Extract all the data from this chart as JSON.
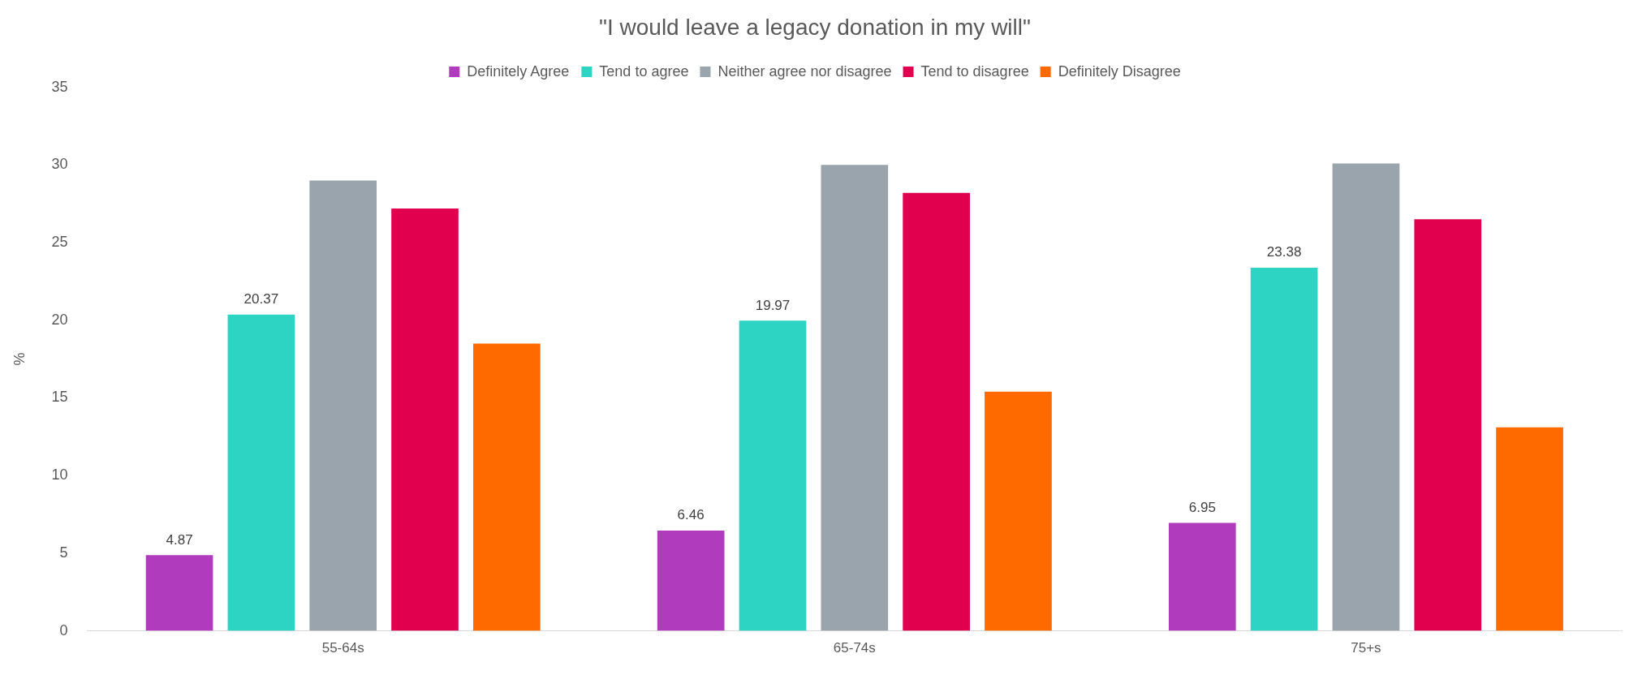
{
  "chart_data": {
    "type": "bar",
    "title": "\"I would leave a legacy donation in my will\"",
    "ylabel": "%",
    "categories": [
      "55-64s",
      "65-74s",
      "75+s"
    ],
    "series": [
      {
        "name": "Definitely Agree",
        "color": "#b03bbd",
        "values": [
          4.87,
          6.46,
          6.95
        ],
        "value_labels": [
          "4.87",
          "6.46",
          "6.95"
        ]
      },
      {
        "name": "Tend to agree",
        "color": "#2dd4c4",
        "values": [
          20.37,
          19.97,
          23.38
        ],
        "value_labels": [
          "20.37",
          "19.97",
          "23.38"
        ]
      },
      {
        "name": "Neither agree nor disagree",
        "color": "#9aa4ad",
        "values": [
          29.0,
          30.0,
          30.1
        ]
      },
      {
        "name": "Tend to disagree",
        "color": "#e0004d",
        "values": [
          27.2,
          28.2,
          26.5
        ]
      },
      {
        "name": "Definitely Disagree",
        "color": "#ff6a00",
        "values": [
          18.5,
          15.4,
          13.1
        ]
      }
    ],
    "ylim": [
      0,
      35
    ],
    "yticks": [
      0,
      5,
      10,
      15,
      20,
      25,
      30,
      35
    ],
    "grid": false,
    "legend": "top"
  }
}
